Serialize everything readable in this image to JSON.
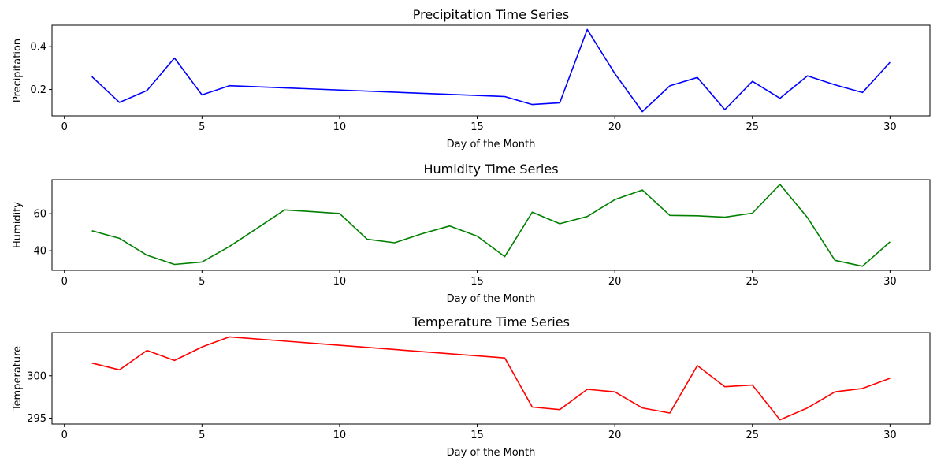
{
  "chart_data": [
    {
      "type": "line",
      "title": "Precipitation Time Series",
      "xlabel": "Day of the Month",
      "ylabel": "Precipitation",
      "color": "#0000ff",
      "xlim": [
        -0.45,
        31.45
      ],
      "ylim": [
        0.077,
        0.5
      ],
      "xticks": [
        0,
        5,
        10,
        15,
        20,
        25,
        30
      ],
      "yticks": [
        0.2,
        0.4
      ],
      "ytick_labels": [
        "0.2",
        "0.4"
      ],
      "x": [
        1,
        2,
        3,
        4,
        5,
        6,
        16,
        17,
        18,
        19,
        20,
        21,
        22,
        23,
        24,
        25,
        26,
        27,
        28,
        29,
        30
      ],
      "y": [
        0.26,
        0.14,
        0.195,
        0.347,
        0.175,
        0.218,
        0.167,
        0.13,
        0.138,
        0.48,
        0.275,
        0.097,
        0.217,
        0.256,
        0.106,
        0.238,
        0.159,
        0.264,
        0.222,
        0.186,
        0.327
      ]
    },
    {
      "type": "line",
      "title": "Humidity Time Series",
      "xlabel": "Day of the Month",
      "ylabel": "Humidity",
      "color": "#008000",
      "xlim": [
        -0.45,
        31.45
      ],
      "ylim": [
        29.4,
        78.4
      ],
      "xticks": [
        0,
        5,
        10,
        15,
        20,
        25,
        30
      ],
      "yticks": [
        40,
        60
      ],
      "ytick_labels": [
        "40",
        "60"
      ],
      "x": [
        1,
        2,
        3,
        4,
        5,
        6,
        7,
        8,
        9,
        10,
        11,
        12,
        13,
        14,
        15,
        16,
        17,
        18,
        19,
        20,
        21,
        22,
        23,
        24,
        25,
        26,
        27,
        28,
        29,
        30
      ],
      "y": [
        50.8,
        46.7,
        37.6,
        32.6,
        33.9,
        42.3,
        52.1,
        62.1,
        61.1,
        60.1,
        46.2,
        44.3,
        49.2,
        53.4,
        47.9,
        36.8,
        60.8,
        54.6,
        58.5,
        67.6,
        72.8,
        59.1,
        58.9,
        58.1,
        60.3,
        75.9,
        57.9,
        34.8,
        31.6,
        44.8
      ]
    },
    {
      "type": "line",
      "title": "Temperature Time Series",
      "xlabel": "Day of the Month",
      "ylabel": "Temperature",
      "color": "#ff0000",
      "xlim": [
        -0.45,
        31.45
      ],
      "ylim": [
        294.3,
        305.1
      ],
      "xticks": [
        0,
        5,
        10,
        15,
        20,
        25,
        30
      ],
      "yticks": [
        295,
        300
      ],
      "ytick_labels": [
        "295",
        "300"
      ],
      "x": [
        1,
        2,
        3,
        4,
        5,
        6,
        16,
        17,
        18,
        19,
        20,
        21,
        22,
        23,
        24,
        25,
        26,
        27,
        28,
        29,
        30
      ],
      "y": [
        301.5,
        300.7,
        303.0,
        301.8,
        303.4,
        304.6,
        302.1,
        296.3,
        296.0,
        298.4,
        298.1,
        296.2,
        295.6,
        301.2,
        298.7,
        298.9,
        294.8,
        296.2,
        298.1,
        298.5,
        299.7
      ]
    }
  ]
}
